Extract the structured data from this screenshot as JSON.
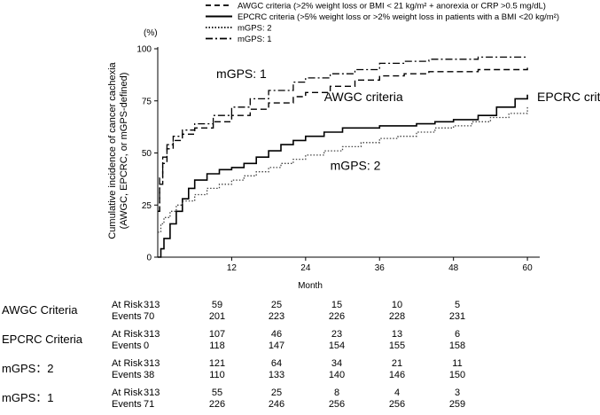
{
  "chart_data": {
    "type": "line",
    "title": "",
    "xlabel": "Month",
    "ylabel_line1": "Cumulative incidence of cancer cachexia",
    "ylabel_line2": "(AWGC, EPCRC, or mGPS-defined)",
    "y_unit": "(%)",
    "xlim": [
      0,
      62
    ],
    "ylim": [
      0,
      100
    ],
    "x_ticks": [
      12,
      24,
      36,
      48,
      60
    ],
    "y_ticks": [
      0,
      25,
      50,
      75,
      100
    ],
    "legend_position": "top",
    "legend": [
      {
        "key": "awgc",
        "label": "AWGC criteria (>2% weight loss or BMI < 21 kg/m² + anorexia or CRP >0.5 mg/dL)",
        "style": "dashed"
      },
      {
        "key": "epcrc",
        "label": "EPCRC criteria (>5% weight loss or >2% weight loss in patients with a BMI <20 kg/m²)",
        "style": "solid"
      },
      {
        "key": "mgps2",
        "label": "mGPS: 2",
        "style": "dotted"
      },
      {
        "key": "mgps1",
        "label": "mGPS: 1",
        "style": "dashdot"
      }
    ],
    "annotations": [
      {
        "text": "mGPS: 1",
        "series": "mgps1"
      },
      {
        "text": "AWGC criteria",
        "series": "awgc"
      },
      {
        "text": "EPCRC criteria",
        "series": "epcrc"
      },
      {
        "text": "mGPS: 2",
        "series": "mgps2"
      }
    ],
    "series": [
      {
        "key": "mgps1",
        "style": "dashdot",
        "x": [
          0,
          0.3,
          0.8,
          1.5,
          2.5,
          4,
          6,
          9,
          12,
          15,
          18,
          22,
          24,
          28,
          32,
          36,
          40,
          44,
          48,
          52,
          56,
          60
        ],
        "y": [
          22,
          38,
          48,
          54,
          58,
          61,
          64,
          68,
          72,
          76,
          80,
          84,
          86,
          88,
          90,
          93,
          94,
          95,
          95,
          96,
          96,
          96
        ]
      },
      {
        "key": "awgc",
        "style": "dashed",
        "x": [
          0,
          0.3,
          0.8,
          1.5,
          2.5,
          4,
          6,
          9,
          12,
          15,
          18,
          22,
          24,
          28,
          32,
          36,
          40,
          44,
          48,
          52,
          56,
          60
        ],
        "y": [
          22,
          35,
          45,
          52,
          56,
          59,
          62,
          65,
          68,
          71,
          74,
          77,
          79,
          82,
          85,
          87,
          88,
          89,
          89,
          90,
          90,
          91
        ]
      },
      {
        "key": "epcrc",
        "style": "solid",
        "x": [
          0,
          0.5,
          1,
          2,
          3,
          4,
          5,
          6,
          8,
          10,
          12,
          14,
          16,
          18,
          20,
          22,
          24,
          27,
          30,
          33,
          36,
          39,
          42,
          45,
          48,
          52,
          55,
          58,
          60
        ],
        "y": [
          0,
          4,
          9,
          16,
          22,
          28,
          33,
          37,
          40,
          42,
          43,
          45,
          48,
          51,
          54,
          56,
          58,
          60,
          62,
          62,
          63,
          63,
          64,
          65,
          66,
          68,
          72,
          76,
          78
        ]
      },
      {
        "key": "mgps2",
        "style": "dotted",
        "x": [
          0,
          0.5,
          1,
          2,
          3,
          4,
          6,
          8,
          10,
          12,
          14,
          16,
          18,
          20,
          22,
          24,
          27,
          30,
          33,
          36,
          39,
          42,
          45,
          48,
          51,
          54,
          57,
          60
        ],
        "y": [
          12,
          16,
          19,
          22,
          25,
          27,
          30,
          33,
          35,
          37,
          39,
          41,
          43,
          45,
          47,
          49,
          51,
          53,
          55,
          57,
          58,
          60,
          62,
          63,
          65,
          67,
          69,
          72
        ]
      }
    ]
  },
  "risk_table": {
    "groups": [
      {
        "name": "AWGC Criteria",
        "at_risk_label": "At Risk",
        "events_label": "Events",
        "at_risk": [
          "313",
          "59",
          "25",
          "15",
          "10",
          "5"
        ],
        "events": [
          "70",
          "201",
          "223",
          "226",
          "228",
          "231"
        ]
      },
      {
        "name": "EPCRC Criteria",
        "at_risk_label": "At Risk",
        "events_label": "Events",
        "at_risk": [
          "313",
          "107",
          "46",
          "23",
          "13",
          "6"
        ],
        "events": [
          "0",
          "118",
          "147",
          "154",
          "155",
          "158"
        ]
      },
      {
        "name": "mGPS：2",
        "at_risk_label": "At Risk",
        "events_label": "Events",
        "at_risk": [
          "313",
          "121",
          "64",
          "34",
          "21",
          "11"
        ],
        "events": [
          "38",
          "110",
          "133",
          "140",
          "146",
          "150"
        ]
      },
      {
        "name": "mGPS：1",
        "at_risk_label": "At Risk",
        "events_label": "Events",
        "at_risk": [
          "313",
          "55",
          "25",
          "8",
          "4",
          "3"
        ],
        "events": [
          "71",
          "226",
          "246",
          "256",
          "256",
          "259"
        ]
      }
    ]
  }
}
